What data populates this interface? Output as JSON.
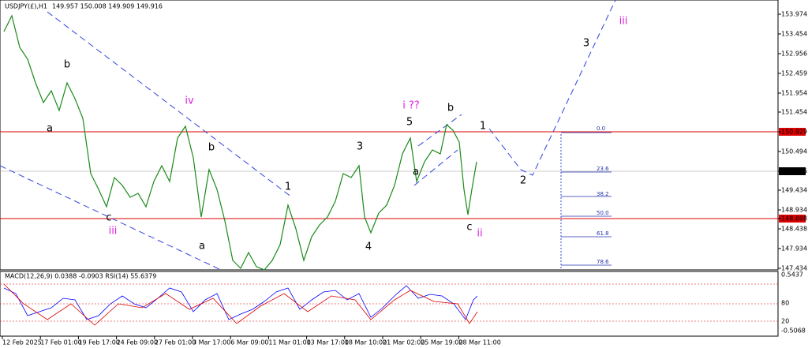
{
  "header": {
    "symbol": "USDJPY(£),H1",
    "quote": "149.957 150.008 149.909 149.916"
  },
  "price_axis": [
    "153.974",
    "153.454",
    "152.956",
    "152.459",
    "151.954",
    "151.454",
    "150.929",
    "150.494",
    "149.916",
    "149.434",
    "148.934",
    "148.698",
    "148.438",
    "147.934",
    "147.434"
  ],
  "indicator": {
    "label": "MACD(12,26,9) 0.0388 -0.0903 RSI(14) 55.6379",
    "axis": [
      "0.5437",
      "80",
      "20",
      "-0.5068"
    ]
  },
  "time_axis": [
    "12 Feb 2025",
    "17 Feb 01:00",
    "19 Feb 17:00",
    "24 Feb 09:00",
    "27 Feb 01:00",
    "3 Mar 17:00",
    "6 Mar 09:00",
    "11 Mar 01:00",
    "13 Mar 17:00",
    "18 Mar 10:00",
    "21 Mar 02:00",
    "25 Mar 19:00",
    "28 Mar 11:00"
  ],
  "wave_labels": [
    "b",
    "a",
    "iv",
    "b",
    "c",
    "iii",
    "a",
    "1",
    "3",
    "4",
    "5",
    "i ??",
    "b",
    "a",
    "c",
    "ii",
    "1",
    "2",
    "3",
    "iii"
  ],
  "fib_levels": [
    "0.0",
    "23.6",
    "38.2",
    "50.0",
    "61.8",
    "78.6"
  ]
}
